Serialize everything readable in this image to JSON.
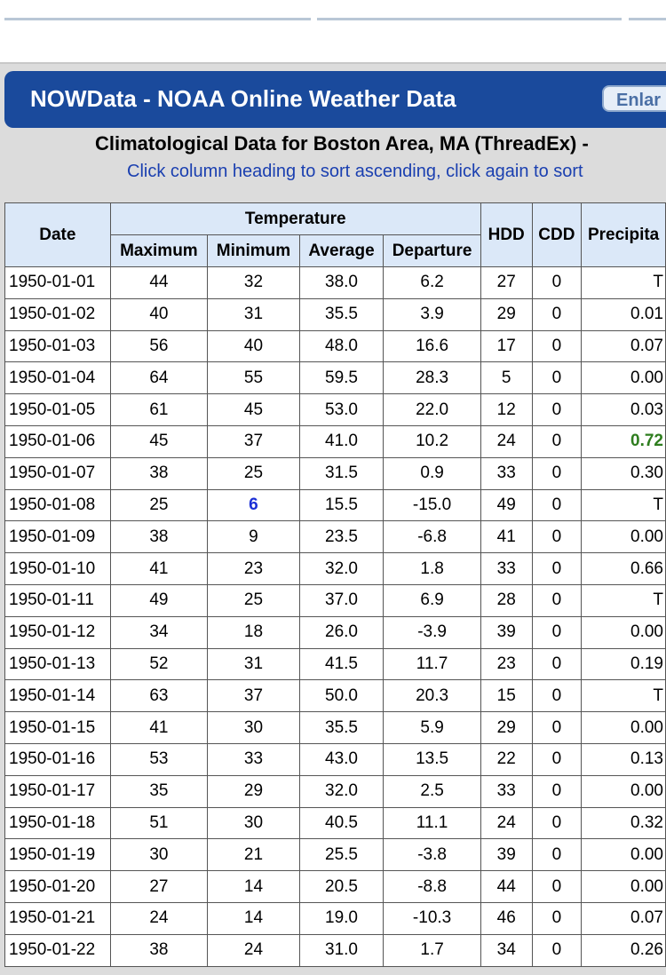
{
  "header": {
    "title": "NOWData - NOAA Online Weather Data",
    "button": "Enlar"
  },
  "subtitle": "Climatological Data for Boston Area, MA (ThreadEx) -",
  "instruction": "Click column heading to sort ascending, click again to sort",
  "table": {
    "group_header": "Temperature",
    "columns": [
      "Date",
      "Maximum",
      "Minimum",
      "Average",
      "Departure",
      "HDD",
      "CDD",
      "Precipita"
    ],
    "rows": [
      [
        "1950-01-01",
        "44",
        "32",
        "38.0",
        "6.2",
        "27",
        "0",
        "T"
      ],
      [
        "1950-01-02",
        "40",
        "31",
        "35.5",
        "3.9",
        "29",
        "0",
        "0.01"
      ],
      [
        "1950-01-03",
        "56",
        "40",
        "48.0",
        "16.6",
        "17",
        "0",
        "0.07"
      ],
      [
        "1950-01-04",
        "64",
        "55",
        "59.5",
        "28.3",
        "5",
        "0",
        "0.00"
      ],
      [
        "1950-01-05",
        "61",
        "45",
        "53.0",
        "22.0",
        "12",
        "0",
        "0.03"
      ],
      [
        "1950-01-06",
        "45",
        "37",
        "41.0",
        "10.2",
        "24",
        "0",
        "0.72"
      ],
      [
        "1950-01-07",
        "38",
        "25",
        "31.5",
        "0.9",
        "33",
        "0",
        "0.30"
      ],
      [
        "1950-01-08",
        "25",
        "6",
        "15.5",
        "-15.0",
        "49",
        "0",
        "T"
      ],
      [
        "1950-01-09",
        "38",
        "9",
        "23.5",
        "-6.8",
        "41",
        "0",
        "0.00"
      ],
      [
        "1950-01-10",
        "41",
        "23",
        "32.0",
        "1.8",
        "33",
        "0",
        "0.66"
      ],
      [
        "1950-01-11",
        "49",
        "25",
        "37.0",
        "6.9",
        "28",
        "0",
        "T"
      ],
      [
        "1950-01-12",
        "34",
        "18",
        "26.0",
        "-3.9",
        "39",
        "0",
        "0.00"
      ],
      [
        "1950-01-13",
        "52",
        "31",
        "41.5",
        "11.7",
        "23",
        "0",
        "0.19"
      ],
      [
        "1950-01-14",
        "63",
        "37",
        "50.0",
        "20.3",
        "15",
        "0",
        "T"
      ],
      [
        "1950-01-15",
        "41",
        "30",
        "35.5",
        "5.9",
        "29",
        "0",
        "0.00"
      ],
      [
        "1950-01-16",
        "53",
        "33",
        "43.0",
        "13.5",
        "22",
        "0",
        "0.13"
      ],
      [
        "1950-01-17",
        "35",
        "29",
        "32.0",
        "2.5",
        "33",
        "0",
        "0.00"
      ],
      [
        "1950-01-18",
        "51",
        "30",
        "40.5",
        "11.1",
        "24",
        "0",
        "0.32"
      ],
      [
        "1950-01-19",
        "30",
        "21",
        "25.5",
        "-3.8",
        "39",
        "0",
        "0.00"
      ],
      [
        "1950-01-20",
        "27",
        "14",
        "20.5",
        "-8.8",
        "44",
        "0",
        "0.00"
      ],
      [
        "1950-01-21",
        "24",
        "14",
        "19.0",
        "-10.3",
        "46",
        "0",
        "0.07"
      ],
      [
        "1950-01-22",
        "38",
        "24",
        "31.0",
        "1.7",
        "34",
        "0",
        "0.26"
      ]
    ],
    "highlights": [
      {
        "row": 7,
        "col": 2,
        "color": "#1b2fd6"
      },
      {
        "row": 5,
        "col": 7,
        "color": "#2e7d1e"
      }
    ]
  }
}
